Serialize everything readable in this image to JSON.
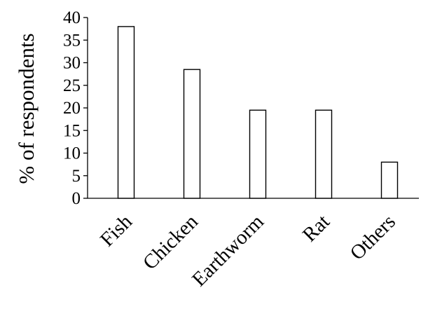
{
  "chart_data": {
    "type": "bar",
    "title": "",
    "xlabel": "",
    "ylabel": "% of respondents",
    "categories": [
      "Fish",
      "Chicken",
      "Earthworm",
      "Rat",
      "Others"
    ],
    "values": [
      38,
      28.5,
      19.5,
      19.5,
      8
    ],
    "ylim": [
      0,
      40
    ],
    "yticks": [
      0,
      5,
      10,
      15,
      20,
      25,
      30,
      35,
      40
    ],
    "ytick_labels": [
      "0",
      "5",
      "10",
      "15",
      "20",
      "25",
      "30",
      "35",
      "40"
    ],
    "grid": false,
    "legend": "none",
    "bar_fill": "#ffffff",
    "bar_edge": "#000000"
  }
}
